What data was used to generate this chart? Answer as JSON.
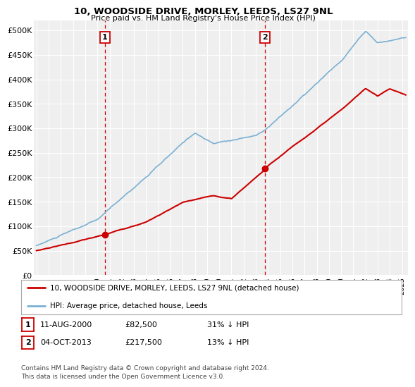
{
  "title": "10, WOODSIDE DRIVE, MORLEY, LEEDS, LS27 9NL",
  "subtitle": "Price paid vs. HM Land Registry's House Price Index (HPI)",
  "ylabel_ticks": [
    "£0",
    "£50K",
    "£100K",
    "£150K",
    "£200K",
    "£250K",
    "£300K",
    "£350K",
    "£400K",
    "£450K",
    "£500K"
  ],
  "ytick_values": [
    0,
    50000,
    100000,
    150000,
    200000,
    250000,
    300000,
    350000,
    400000,
    450000,
    500000
  ],
  "ylim": [
    0,
    520000
  ],
  "xlim_start": 1994.8,
  "xlim_end": 2025.5,
  "hpi_color": "#7ab0d4",
  "price_color": "#cc0000",
  "marker1_year": 2000.6,
  "marker1_price": 82500,
  "marker1_label": "1",
  "marker1_date": "11-AUG-2000",
  "marker1_price_str": "£82,500",
  "marker1_pct": "31% ↓ HPI",
  "marker2_year": 2013.75,
  "marker2_price": 217500,
  "marker2_label": "2",
  "marker2_date": "04-OCT-2013",
  "marker2_price_str": "£217,500",
  "marker2_pct": "13% ↓ HPI",
  "vline_color": "#cc0000",
  "legend_line1": "10, WOODSIDE DRIVE, MORLEY, LEEDS, LS27 9NL (detached house)",
  "legend_line2": "HPI: Average price, detached house, Leeds",
  "footnote": "Contains HM Land Registry data © Crown copyright and database right 2024.\nThis data is licensed under the Open Government Licence v3.0.",
  "xtick_years": [
    1995,
    1996,
    1997,
    1998,
    1999,
    2000,
    2001,
    2002,
    2003,
    2004,
    2005,
    2006,
    2007,
    2008,
    2009,
    2010,
    2011,
    2012,
    2013,
    2014,
    2015,
    2016,
    2017,
    2018,
    2019,
    2020,
    2021,
    2022,
    2023,
    2024,
    2025
  ],
  "background_color": "#ffffff",
  "plot_bg_color": "#efefef"
}
